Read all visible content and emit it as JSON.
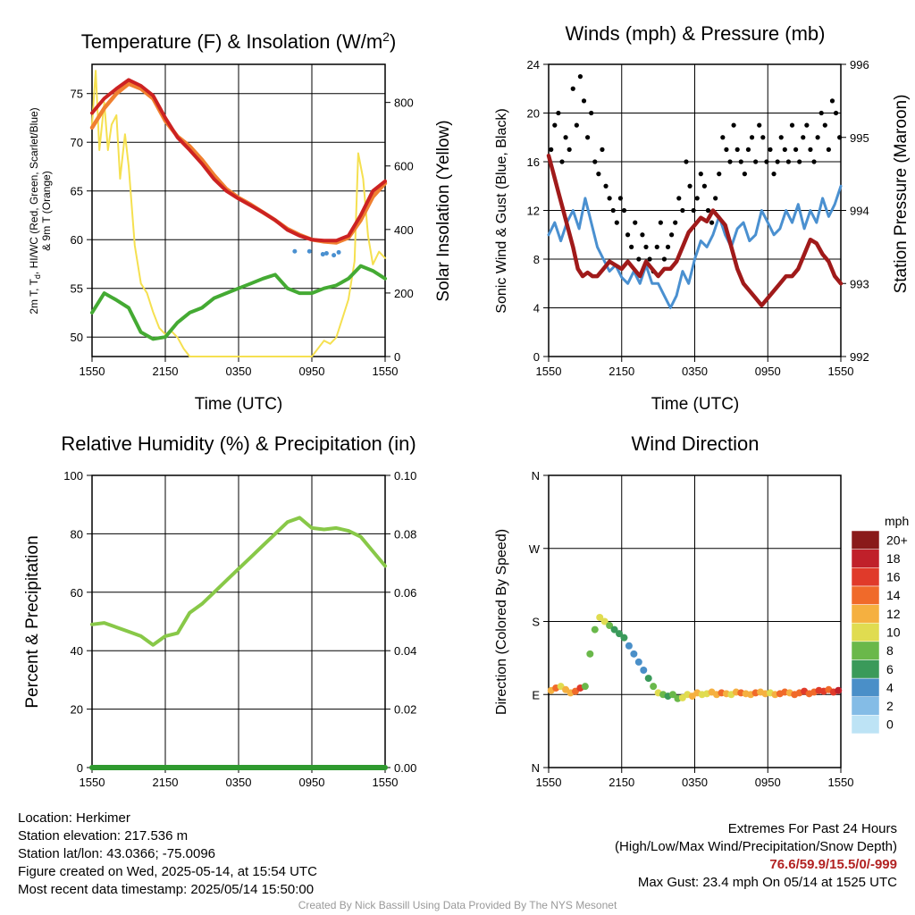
{
  "panels": {
    "temp": {
      "title_main": "Temperature (F) & Insolation (W/m",
      "title_sup": "2",
      "title_end": ")",
      "ylabel_left_1": "2m T, T",
      "ylabel_left_sub": "d",
      "ylabel_left_2": ", HI/WC (Red, Green, Scarlet/Blue)",
      "ylabel_left_3": "& 9m T (Orange)",
      "ylabel_right": "Solar Insolation (Yellow)",
      "xlabel": "Time (UTC)"
    },
    "wind": {
      "title": "Winds (mph) & Pressure (mb)",
      "ylabel_left": "Sonic Wind & Gust (Blue, Black)",
      "ylabel_right": "Station Pressure (Maroon)",
      "xlabel": "Time (UTC)"
    },
    "rh": {
      "title": "Relative Humidity (%) & Precipitation (in)",
      "ylabel_left": "Percent & Precipitation"
    },
    "dir": {
      "title": "Wind Direction",
      "ylabel_left": "Direction (Colored By Speed)",
      "colorbar_title": "mph"
    }
  },
  "colors": {
    "temp": "#cc2222",
    "temp9m": "#f08030",
    "dewpoint": "#44aa33",
    "insolation": "#f5e050",
    "wc": "#4a90d0",
    "wind": "#4a90d0",
    "gust": "#000000",
    "pressure": "#a01a1a",
    "rh": "#88c848",
    "precip": "#2f9a2f"
  },
  "chart_data": [
    {
      "type": "line",
      "panel": "temp",
      "x_ticks": [
        "1550",
        "2150",
        "0350",
        "0950",
        "1550"
      ],
      "y_left_range": [
        48,
        78
      ],
      "y_left_ticks": [
        50,
        55,
        60,
        65,
        70,
        75
      ],
      "y_right_range": [
        0,
        920
      ],
      "y_right_ticks": [
        0,
        200,
        400,
        600,
        800
      ],
      "series": [
        {
          "name": "Temperature",
          "axis": "left",
          "color": "#cc2222",
          "x": [
            0,
            1,
            2,
            3,
            4,
            5,
            6,
            7,
            8,
            9,
            10,
            11,
            12,
            13,
            14,
            15,
            16,
            17,
            18,
            19,
            20,
            21,
            22,
            23,
            24
          ],
          "y": [
            73,
            74.5,
            75.5,
            76.4,
            75.8,
            74.8,
            72.5,
            70.5,
            69.2,
            67.8,
            66.2,
            65,
            64.2,
            63.5,
            62.8,
            62,
            61,
            60.4,
            60,
            59.9,
            59.9,
            60.4,
            62.5,
            65,
            66
          ]
        },
        {
          "name": "9m T",
          "axis": "left",
          "color": "#f08030",
          "x": [
            0,
            1,
            2,
            3,
            4,
            5,
            6,
            7,
            8,
            9,
            10,
            11,
            12,
            13,
            14,
            15,
            16,
            17,
            18,
            19,
            20,
            21,
            22,
            23,
            24
          ],
          "y": [
            71.5,
            73.5,
            75,
            76,
            75.5,
            74.5,
            72.2,
            70.6,
            69.6,
            68.2,
            66.6,
            65.2,
            64.3,
            63.6,
            62.8,
            62,
            61.1,
            60.5,
            60,
            59.8,
            59.7,
            60.2,
            62,
            64.4,
            65.8
          ]
        },
        {
          "name": "Dew point",
          "axis": "left",
          "color": "#44aa33",
          "x": [
            0,
            1,
            2,
            3,
            4,
            5,
            6,
            7,
            8,
            9,
            10,
            11,
            12,
            13,
            14,
            15,
            16,
            17,
            18,
            19,
            20,
            21,
            22,
            23,
            24
          ],
          "y": [
            52.5,
            54.5,
            53.8,
            53,
            50.5,
            49.8,
            50,
            51.5,
            52.5,
            53,
            54,
            54.5,
            55,
            55.5,
            56,
            56.4,
            55,
            54.5,
            54.5,
            55,
            55.3,
            56,
            57.3,
            56.8,
            56
          ]
        },
        {
          "name": "Wind chill",
          "axis": "left",
          "color": "#4a90d0",
          "x": [
            16.6,
            17.8,
            18.9,
            19.2,
            19.8,
            20.2
          ],
          "y": [
            58.8,
            58.8,
            58.5,
            58.6,
            58.4,
            58.7
          ]
        },
        {
          "name": "Solar insolation",
          "axis": "right",
          "color": "#f5e050",
          "x": [
            0,
            0.3,
            0.6,
            1,
            1.3,
            1.6,
            2,
            2.3,
            2.7,
            3,
            3.5,
            4,
            4.5,
            5,
            5.5,
            6,
            6.5,
            7,
            7.5,
            8,
            10,
            12,
            14,
            16,
            18,
            18.6,
            19,
            19.5,
            20,
            20.5,
            21,
            21.5,
            21.8,
            22.2,
            22.6,
            23,
            23.5,
            24
          ],
          "y": [
            730,
            900,
            650,
            800,
            650,
            730,
            760,
            560,
            700,
            600,
            350,
            230,
            200,
            140,
            90,
            70,
            80,
            60,
            25,
            0,
            0,
            0,
            0,
            0,
            0,
            30,
            50,
            40,
            60,
            120,
            180,
            300,
            640,
            560,
            380,
            290,
            330,
            310
          ]
        }
      ]
    },
    {
      "type": "line",
      "panel": "wind",
      "x_ticks": [
        "1550",
        "2150",
        "0350",
        "0950",
        "1550"
      ],
      "y_left_range": [
        0,
        24
      ],
      "y_left_ticks": [
        0,
        4,
        8,
        12,
        16,
        20,
        24
      ],
      "y_right_range": [
        992,
        996
      ],
      "y_right_ticks": [
        992,
        993,
        994,
        995,
        996
      ],
      "series": [
        {
          "name": "Sonic wind",
          "axis": "left",
          "color": "#4a90d0",
          "x": [
            0,
            0.5,
            1,
            1.5,
            2,
            2.5,
            3,
            3.5,
            4,
            4.5,
            5,
            5.5,
            6,
            6.5,
            7,
            7.5,
            8,
            8.5,
            9,
            9.5,
            10,
            10.5,
            11,
            11.5,
            12,
            12.5,
            13,
            13.5,
            14,
            14.5,
            15,
            15.5,
            16,
            16.5,
            17,
            17.5,
            18,
            18.5,
            19,
            19.5,
            20,
            20.5,
            21,
            21.5,
            22,
            22.5,
            23,
            23.5,
            24
          ],
          "y": [
            10,
            11,
            9.5,
            11,
            12,
            10.5,
            13,
            11,
            9,
            8,
            7,
            7.5,
            6.5,
            6,
            7,
            6,
            7.5,
            6,
            6,
            5,
            4,
            5,
            7,
            6,
            8,
            9.5,
            9,
            10,
            11.5,
            10,
            9,
            10.5,
            11,
            9.5,
            10,
            12,
            11,
            10,
            10.5,
            12,
            11,
            12.5,
            10.5,
            12,
            11,
            13,
            11.5,
            12.5,
            14
          ]
        },
        {
          "name": "Gust",
          "axis": "left",
          "color": "#000000",
          "x": [
            0.2,
            0.5,
            0.8,
            1.1,
            1.4,
            1.7,
            2,
            2.3,
            2.6,
            2.9,
            3.2,
            3.5,
            3.8,
            4.1,
            4.4,
            4.7,
            5,
            5.3,
            5.6,
            5.9,
            6.2,
            6.5,
            6.8,
            7.1,
            7.4,
            7.7,
            8,
            8.3,
            8.6,
            8.9,
            9.2,
            9.5,
            9.8,
            10.1,
            10.4,
            10.7,
            11,
            11.3,
            11.6,
            11.9,
            12.2,
            12.5,
            12.8,
            13.1,
            13.4,
            13.7,
            14,
            14.3,
            14.6,
            14.9,
            15.2,
            15.5,
            15.8,
            16.1,
            16.4,
            16.7,
            17,
            17.3,
            17.6,
            17.9,
            18.2,
            18.5,
            18.8,
            19.1,
            19.4,
            19.7,
            20,
            20.3,
            20.6,
            20.9,
            21.2,
            21.5,
            21.8,
            22.1,
            22.4,
            22.7,
            23,
            23.3,
            23.6,
            23.9
          ],
          "y": [
            17,
            19,
            20,
            16,
            18,
            17,
            22,
            19,
            23,
            21,
            18,
            20,
            16,
            15,
            17,
            14,
            13,
            12,
            11,
            13,
            12,
            10,
            9,
            11,
            8,
            10,
            9,
            8,
            7,
            9,
            11,
            8,
            9,
            10,
            11,
            13,
            12,
            16,
            14,
            12,
            13,
            15,
            14,
            12,
            11,
            13,
            15,
            18,
            17,
            16,
            19,
            17,
            16,
            15,
            17,
            18,
            16,
            19,
            18,
            16,
            17,
            15,
            16,
            18,
            17,
            16,
            19,
            17,
            16,
            18,
            19,
            17,
            16,
            18,
            20,
            19,
            17,
            21,
            20,
            18
          ]
        },
        {
          "name": "Station pressure",
          "axis": "right",
          "color": "#a01a1a",
          "x": [
            0,
            0.4,
            0.8,
            1.2,
            1.6,
            2,
            2.4,
            2.8,
            3.2,
            3.6,
            4,
            4.5,
            5,
            5.5,
            6,
            6.5,
            7,
            7.5,
            8,
            8.5,
            9,
            9.5,
            10,
            10.5,
            11,
            11.5,
            12,
            12.5,
            13,
            13.5,
            14,
            14.5,
            15,
            15.5,
            16,
            16.5,
            17,
            17.5,
            18,
            18.5,
            19,
            19.5,
            20,
            20.5,
            21,
            21.5,
            22,
            22.5,
            23,
            23.5,
            24
          ],
          "y": [
            994.75,
            994.5,
            994.25,
            994,
            993.75,
            993.5,
            993.2,
            993.1,
            993.15,
            993.1,
            993.1,
            993.2,
            993.3,
            993.25,
            993.2,
            993.3,
            993.2,
            993.1,
            993.3,
            993.2,
            993.1,
            993.2,
            993.2,
            993.3,
            993.5,
            993.7,
            993.8,
            993.9,
            993.85,
            994,
            993.9,
            993.8,
            993.5,
            993.2,
            993,
            992.9,
            992.8,
            992.7,
            992.8,
            992.9,
            993,
            993.1,
            993.1,
            993.2,
            993.4,
            993.6,
            993.55,
            993.4,
            993.3,
            993.1,
            993
          ]
        }
      ]
    },
    {
      "type": "line",
      "panel": "rh",
      "x_ticks": [
        "1550",
        "2150",
        "0350",
        "0950",
        "1550"
      ],
      "y_left_range": [
        0,
        100
      ],
      "y_left_ticks": [
        0,
        20,
        40,
        60,
        80,
        100
      ],
      "y_right_range": [
        0,
        0.1
      ],
      "y_right_ticks": [
        "0.00",
        "0.02",
        "0.04",
        "0.06",
        "0.08",
        "0.10"
      ],
      "series": [
        {
          "name": "Relative humidity",
          "axis": "left",
          "color": "#88c848",
          "x": [
            0,
            1,
            2,
            3,
            4,
            5,
            6,
            7,
            8,
            9,
            10,
            11,
            12,
            13,
            14,
            15,
            16,
            17,
            18,
            19,
            20,
            21,
            22,
            23,
            24
          ],
          "y": [
            49,
            49.5,
            48,
            46.5,
            45,
            42,
            45,
            46,
            53,
            56,
            60,
            64,
            68,
            72,
            76,
            80,
            84,
            85.5,
            82,
            81.5,
            82,
            81,
            79,
            74,
            69
          ]
        },
        {
          "name": "Precipitation",
          "axis": "right",
          "color": "#2f9a2f",
          "x": [
            0,
            24
          ],
          "y": [
            0,
            0
          ]
        }
      ]
    },
    {
      "type": "scatter",
      "panel": "dir",
      "x_ticks": [
        "1550",
        "2150",
        "0350",
        "0950",
        "1550"
      ],
      "y_ticks": [
        "N",
        "E",
        "S",
        "W",
        "N"
      ],
      "y_range": [
        0,
        360
      ],
      "colorbar": {
        "labels": [
          "0",
          "2",
          "4",
          "6",
          "8",
          "10",
          "12",
          "14",
          "16",
          "18",
          "20+"
        ],
        "colors": [
          "#bde3f5",
          "#84bce6",
          "#4a8fc8",
          "#3a9a5a",
          "#6ab84a",
          "#e0dc50",
          "#f5b040",
          "#f06a2a",
          "#e03a2a",
          "#c0202a",
          "#8a1a1a"
        ]
      },
      "x": [
        0.2,
        0.6,
        1,
        1.4,
        1.8,
        2.2,
        2.6,
        3,
        3.4,
        3.8,
        4.2,
        4.6,
        5,
        5.4,
        5.8,
        6.2,
        6.6,
        7,
        7.4,
        7.8,
        8.2,
        8.6,
        9,
        9.4,
        9.8,
        10.2,
        10.6,
        11,
        11.4,
        11.8,
        12.2,
        12.6,
        13,
        13.4,
        13.8,
        14.2,
        14.6,
        15,
        15.4,
        15.8,
        16.2,
        16.6,
        17,
        17.4,
        17.8,
        18.2,
        18.6,
        19,
        19.4,
        19.8,
        20.2,
        20.6,
        21,
        21.4,
        21.8,
        22.2,
        22.6,
        23,
        23.4,
        23.8
      ],
      "y": [
        95,
        98,
        100,
        96,
        92,
        94,
        98,
        100,
        140,
        170,
        185,
        180,
        175,
        170,
        165,
        160,
        150,
        140,
        130,
        120,
        110,
        100,
        92,
        90,
        88,
        90,
        85,
        86,
        90,
        88,
        92,
        90,
        91,
        93,
        90,
        92,
        91,
        90,
        93,
        92,
        91,
        90,
        92,
        93,
        91,
        92,
        90,
        91,
        93,
        92,
        90,
        92,
        94,
        91,
        93,
        95,
        94,
        96,
        93,
        95
      ],
      "speed_mph": [
        12,
        14,
        10,
        12,
        11,
        14,
        16,
        8,
        7,
        8,
        9,
        10,
        8,
        6,
        6,
        5,
        4,
        4,
        3,
        4,
        5,
        7,
        9,
        8,
        6,
        7,
        8,
        10,
        9,
        11,
        12,
        10,
        9,
        11,
        12,
        13,
        11,
        10,
        12,
        13,
        12,
        11,
        13,
        12,
        11,
        10,
        12,
        13,
        14,
        12,
        13,
        14,
        15,
        14,
        13,
        16,
        15,
        14,
        16,
        17
      ]
    }
  ],
  "info": {
    "location": "Location: Herkimer",
    "elevation": "Station elevation: 217.536 m",
    "latlon": "Station lat/lon: 43.0366; -75.0096",
    "created": "Figure created on Wed, 2025-05-14, at 15:54 UTC",
    "recent": "Most recent data timestamp: 2025/05/14 15:50:00",
    "extremes_title": "Extremes For Past 24 Hours",
    "extremes_keys": "(High/Low/Max Wind/Precipitation/Snow Depth)",
    "extremes_values": "76.6/59.9/15.5/0/-999",
    "max_gust": "Max Gust: 23.4 mph On 05/14 at 1525 UTC"
  },
  "credit": "Created By Nick Bassill Using Data Provided By The NYS Mesonet"
}
